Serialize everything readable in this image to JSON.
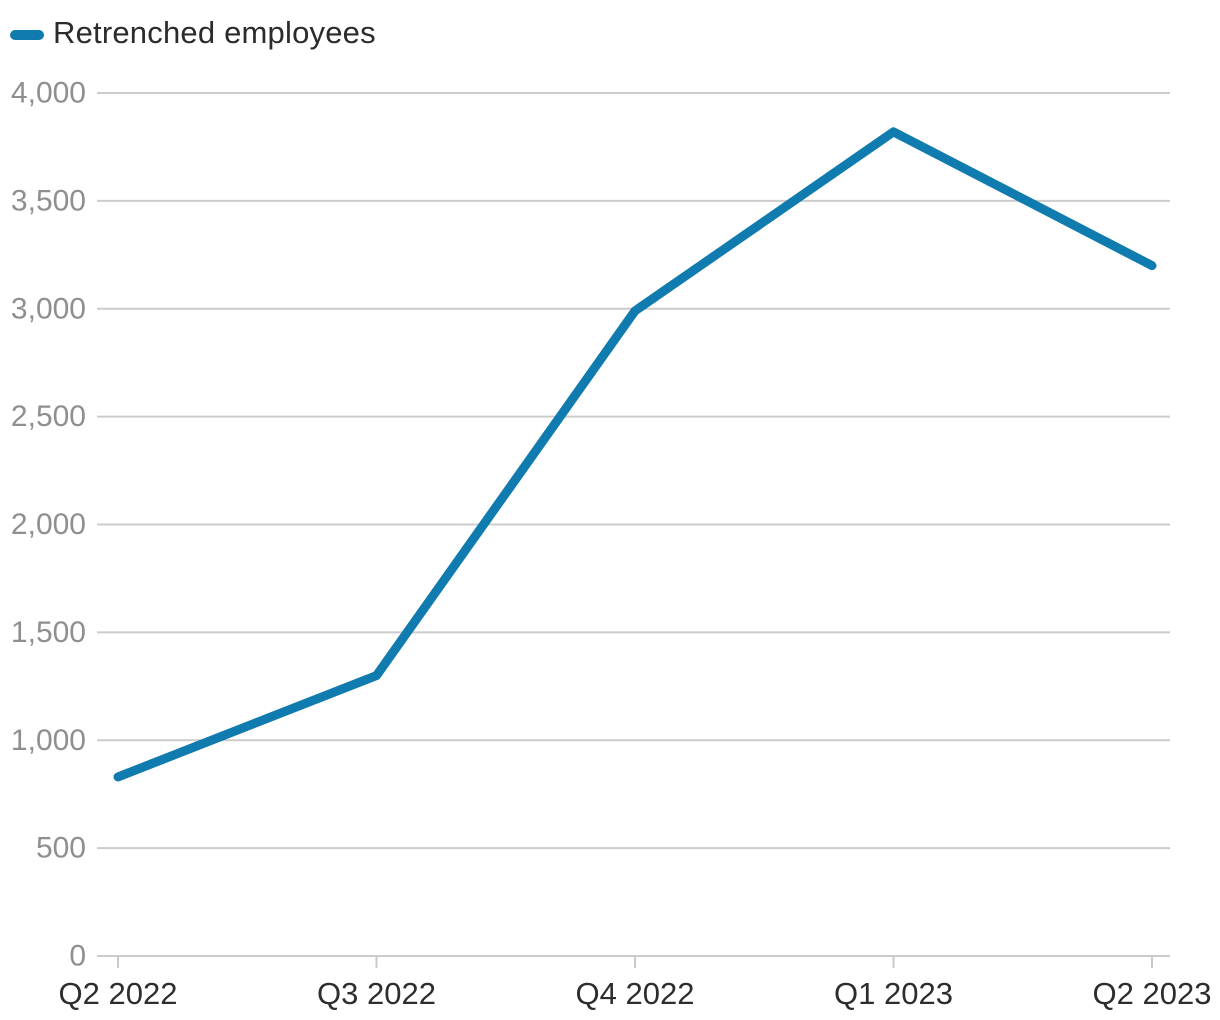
{
  "chart_data": {
    "type": "line",
    "title": "",
    "xlabel": "",
    "ylabel": "",
    "categories": [
      "Q2 2022",
      "Q3 2022",
      "Q4 2022",
      "Q1 2023",
      "Q2 2023"
    ],
    "series": [
      {
        "name": "Retrenched employees",
        "values": [
          830,
          1300,
          2990,
          3820,
          3200
        ],
        "color": "#107baf"
      }
    ],
    "ylim": [
      0,
      4000
    ],
    "yticks": [
      0,
      500,
      1000,
      1500,
      2000,
      2500,
      3000,
      3500,
      4000
    ],
    "ytick_labels": [
      "0",
      "500",
      "1,000",
      "1,500",
      "2,000",
      "2,500",
      "3,000",
      "3,500",
      "4,000"
    ],
    "grid": true,
    "legend_position": "top-left",
    "style": {
      "background_color": "#ffffff",
      "gridline_color": "#cccccc",
      "tick_color": "#c9c9c9",
      "ytick_label_color": "#8f8f8f",
      "xtick_label_color": "#2d2d2d",
      "line_width": 9
    }
  }
}
